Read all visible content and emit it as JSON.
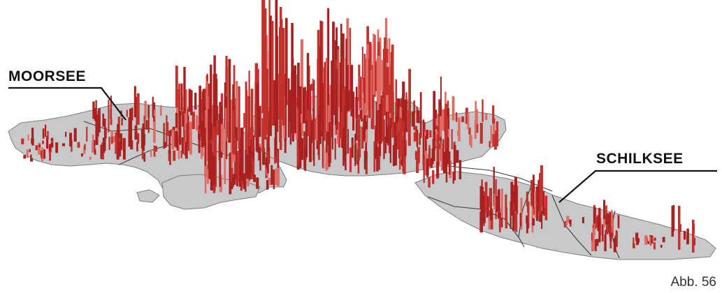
{
  "labels": {
    "moorsee": "MOORSEE",
    "schilksee": "SCHILKSEE"
  },
  "caption": "Abb. 56",
  "colors": {
    "land": "#c9c9cb",
    "land_edge": "#7d7d7f",
    "district_line": "#3c3c3e",
    "bar_dark": "#a8201f",
    "bar_mid": "#c2312c",
    "bar_light": "#e06a64",
    "leader_line": "#111111"
  }
}
